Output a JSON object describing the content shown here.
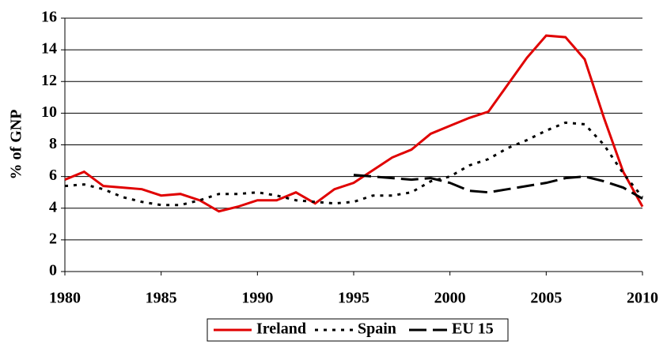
{
  "chart_data": {
    "type": "line",
    "y_label": "% of GNP",
    "x": [
      1980,
      1981,
      1982,
      1983,
      1984,
      1985,
      1986,
      1987,
      1988,
      1989,
      1990,
      1991,
      1992,
      1993,
      1994,
      1995,
      1996,
      1997,
      1998,
      1999,
      2000,
      2001,
      2002,
      2003,
      2004,
      2005,
      2006,
      2007,
      2008,
      2009,
      2010
    ],
    "series": [
      {
        "name": "Ireland",
        "color": "#e00000",
        "dash": "solid",
        "values": [
          5.8,
          6.3,
          5.4,
          5.3,
          5.2,
          4.8,
          4.9,
          4.5,
          3.8,
          4.1,
          4.5,
          4.5,
          5.0,
          4.3,
          5.2,
          5.6,
          6.4,
          7.2,
          7.7,
          8.7,
          9.2,
          9.7,
          10.1,
          11.8,
          13.5,
          14.9,
          14.8,
          13.4,
          9.7,
          6.3,
          4.1
        ]
      },
      {
        "name": "Spain",
        "color": "#000000",
        "dash": "dotted",
        "values": [
          5.4,
          5.5,
          5.2,
          4.7,
          4.4,
          4.2,
          4.2,
          4.5,
          4.9,
          4.9,
          5.0,
          4.8,
          4.5,
          4.4,
          4.3,
          4.4,
          4.8,
          4.8,
          5.0,
          5.7,
          6.0,
          6.7,
          7.1,
          7.8,
          8.3,
          8.9,
          9.4,
          9.3,
          8.0,
          6.2,
          4.7
        ]
      },
      {
        "name": "EU 15",
        "color": "#000000",
        "dash": "long-dash",
        "values": [
          null,
          null,
          null,
          null,
          null,
          null,
          null,
          null,
          null,
          null,
          null,
          null,
          null,
          null,
          null,
          6.1,
          6.0,
          5.9,
          5.8,
          5.9,
          5.6,
          5.1,
          5.0,
          5.2,
          5.4,
          5.6,
          5.9,
          6.0,
          5.7,
          5.3,
          4.6
        ]
      }
    ],
    "xlim": [
      1980,
      2010
    ],
    "xticks": [
      1980,
      1985,
      1990,
      1995,
      2000,
      2005,
      2010
    ],
    "ylim": [
      0,
      16
    ],
    "yticks": [
      0,
      2,
      4,
      6,
      8,
      10,
      12,
      14,
      16
    ],
    "grid": true
  }
}
